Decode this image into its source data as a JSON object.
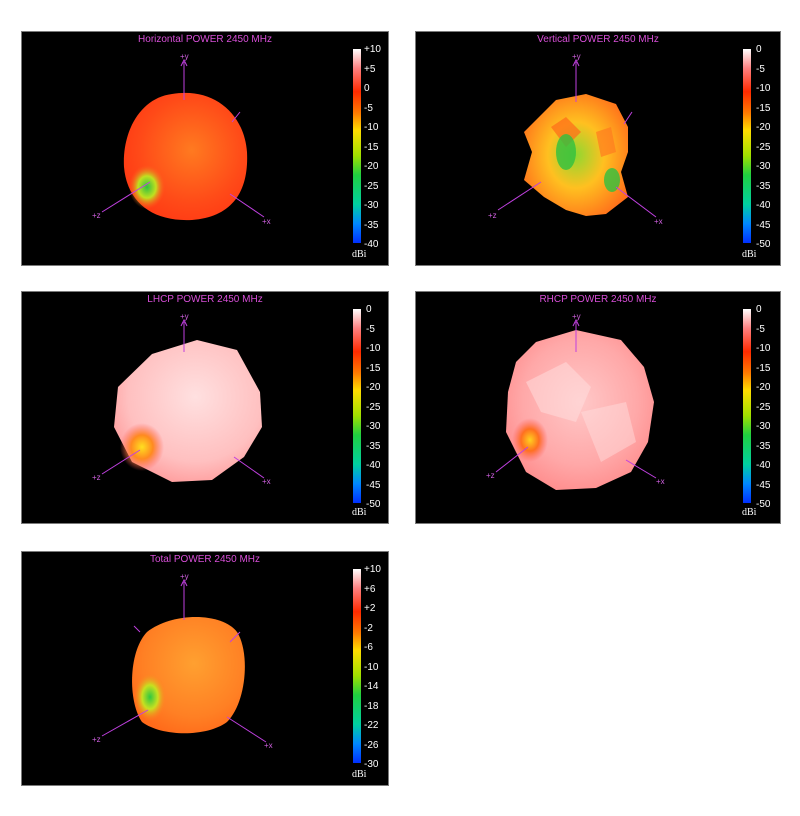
{
  "panels": [
    {
      "id": "horizontal",
      "title": "Horizontal POWER 2450  MHz",
      "scale_ticks": [
        "+10",
        "+5",
        "0",
        "-5",
        "-10",
        "-15",
        "-20",
        "-25",
        "-30",
        "-35",
        "-40"
      ],
      "unit": "dBi",
      "colorbar_colors": [
        "#ffffff",
        "#ff8080",
        "#ff2a00",
        "#ff7a00",
        "#ffdd00",
        "#a0e000",
        "#20d040",
        "#00d0a0",
        "#0088ff",
        "#0030ff"
      ],
      "axis_labels": {
        "y": "+y",
        "x": "+x",
        "z": "+z"
      },
      "pattern_colors": [
        "#ff3a14",
        "#ff5a1e",
        "#ff7a20"
      ]
    },
    {
      "id": "vertical",
      "title": "Vertical POWER 2450  MHz",
      "scale_ticks": [
        "0",
        "-5",
        "-10",
        "-15",
        "-20",
        "-25",
        "-30",
        "-35",
        "-40",
        "-45",
        "-50"
      ],
      "unit": "dBi",
      "colorbar_colors": [
        "#ffffff",
        "#ff8080",
        "#ff2a00",
        "#ff7a00",
        "#ffdd00",
        "#a0e000",
        "#20d040",
        "#00d0a0",
        "#0088ff",
        "#0030ff"
      ],
      "axis_labels": {
        "y": "+y",
        "x": "+x",
        "z": "+z"
      },
      "pattern_colors": [
        "#ff8a20",
        "#ffc020",
        "#90d830"
      ]
    },
    {
      "id": "lhcp",
      "title": "LHCP POWER 2450  MHz",
      "scale_ticks": [
        "0",
        "-5",
        "-10",
        "-15",
        "-20",
        "-25",
        "-30",
        "-35",
        "-40",
        "-45",
        "-50"
      ],
      "unit": "dBi",
      "colorbar_colors": [
        "#ffffff",
        "#ff8080",
        "#ff2a00",
        "#ff7a00",
        "#ffdd00",
        "#a0e000",
        "#20d040",
        "#00d0a0",
        "#0088ff",
        "#0030ff"
      ],
      "axis_labels": {
        "y": "+y",
        "x": "+x",
        "z": "+z"
      },
      "pattern_colors": [
        "#ffd0d0",
        "#ffb4b4",
        "#ff9090"
      ]
    },
    {
      "id": "rhcp",
      "title": "RHCP POWER 2450  MHz",
      "scale_ticks": [
        "0",
        "-5",
        "-10",
        "-15",
        "-20",
        "-25",
        "-30",
        "-35",
        "-40",
        "-45",
        "-50"
      ],
      "unit": "dBi",
      "colorbar_colors": [
        "#ffffff",
        "#ff8080",
        "#ff2a00",
        "#ff7a00",
        "#ffdd00",
        "#a0e000",
        "#20d040",
        "#00d0a0",
        "#0088ff",
        "#0030ff"
      ],
      "axis_labels": {
        "y": "+y",
        "x": "+x",
        "z": "+z"
      },
      "pattern_colors": [
        "#ffc0c0",
        "#ffa0a0",
        "#ff8484"
      ]
    },
    {
      "id": "total",
      "title": "Total POWER 2450  MHz",
      "scale_ticks": [
        "+10",
        "+6",
        "+2",
        "-2",
        "-6",
        "-10",
        "-14",
        "-18",
        "-22",
        "-26",
        "-30"
      ],
      "unit": "dBi",
      "colorbar_colors": [
        "#ffffff",
        "#ff8080",
        "#ff2a00",
        "#ff7a00",
        "#ffdd00",
        "#a0e000",
        "#20d040",
        "#00d0a0",
        "#0088ff",
        "#0030ff"
      ],
      "axis_labels": {
        "y": "+y",
        "x": "+x",
        "z": "+z"
      },
      "pattern_colors": [
        "#ff6a1a",
        "#ff8a24",
        "#ffa030"
      ]
    }
  ]
}
